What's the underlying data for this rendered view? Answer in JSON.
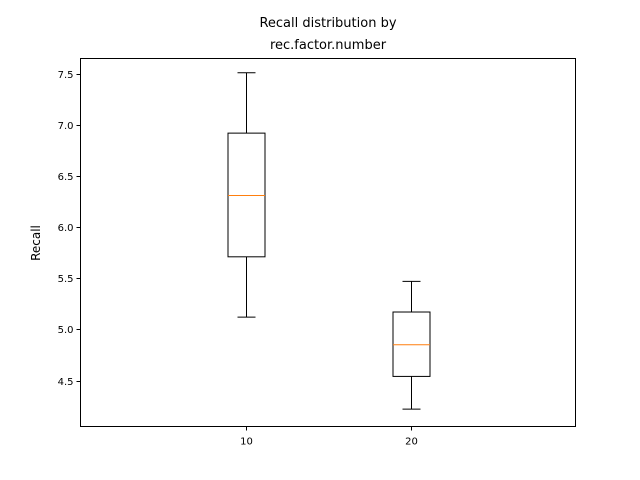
{
  "chart_data": {
    "type": "boxplot",
    "title_lines": [
      "Recall distribution by",
      "rec.factor.number"
    ],
    "xlabel": "",
    "ylabel": "Recall",
    "categories": [
      "10",
      "20"
    ],
    "ylim": [
      4.05,
      7.65
    ],
    "yticks": [
      4.5,
      5.0,
      5.5,
      6.0,
      6.5,
      7.0,
      7.5
    ],
    "ytick_labels": [
      "4.5",
      "5.0",
      "5.5",
      "6.0",
      "6.5",
      "7.0",
      "7.5"
    ],
    "boxes": [
      {
        "category": "10",
        "whisker_low": 5.12,
        "q1": 5.71,
        "median": 6.31,
        "q3": 6.92,
        "whisker_high": 7.51
      },
      {
        "category": "20",
        "whisker_low": 4.22,
        "q1": 4.54,
        "median": 4.85,
        "q3": 5.17,
        "whisker_high": 5.47
      }
    ],
    "colors": {
      "box": "#000000",
      "median": "#ff7f0e"
    },
    "grid": false,
    "legend": "none"
  }
}
